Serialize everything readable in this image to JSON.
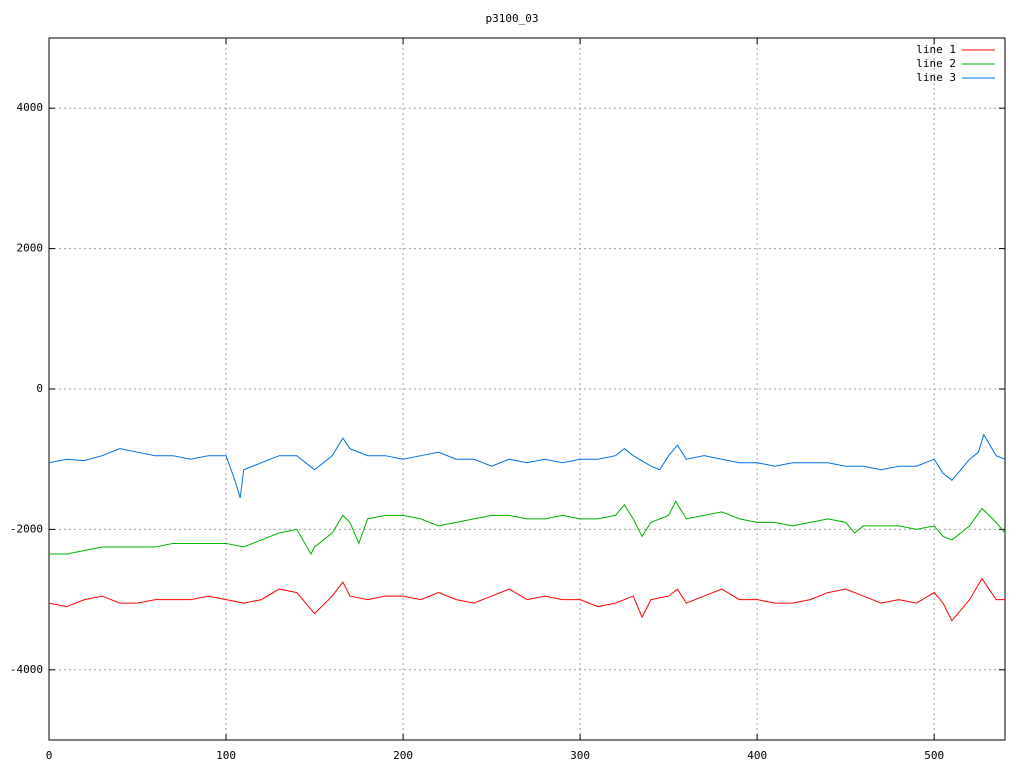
{
  "chart_data": {
    "type": "line",
    "title": "p3100_03",
    "xlim": [
      0,
      540
    ],
    "xticks": [
      0,
      100,
      200,
      300,
      400,
      500
    ],
    "ylim": [
      -5000,
      5000
    ],
    "yticks": [
      -4000,
      -2000,
      0,
      2000,
      4000
    ],
    "grid": true,
    "legend": "top-right",
    "series": [
      {
        "name": "line 1",
        "color": "#ff0000",
        "x": [
          0,
          10,
          20,
          30,
          40,
          50,
          60,
          70,
          80,
          90,
          100,
          110,
          120,
          130,
          140,
          150,
          160,
          166,
          170,
          180,
          190,
          200,
          210,
          220,
          230,
          240,
          250,
          260,
          270,
          280,
          290,
          300,
          310,
          320,
          330,
          335,
          340,
          350,
          355,
          360,
          370,
          380,
          390,
          400,
          410,
          420,
          430,
          440,
          450,
          460,
          470,
          480,
          490,
          500,
          505,
          510,
          520,
          527,
          535,
          540
        ],
        "values": [
          -3050,
          -3100,
          -3000,
          -2950,
          -3050,
          -3050,
          -3000,
          -3000,
          -3000,
          -2950,
          -3000,
          -3050,
          -3000,
          -2850,
          -2900,
          -3200,
          -2950,
          -2750,
          -2950,
          -3000,
          -2950,
          -2950,
          -3000,
          -2900,
          -3000,
          -3050,
          -2950,
          -2850,
          -3000,
          -2950,
          -3000,
          -3000,
          -3100,
          -3050,
          -2950,
          -3250,
          -3000,
          -2950,
          -2850,
          -3050,
          -2950,
          -2850,
          -3000,
          -3000,
          -3050,
          -3050,
          -3000,
          -2900,
          -2850,
          -2950,
          -3050,
          -3000,
          -3050,
          -2900,
          -3050,
          -3300,
          -3000,
          -2700,
          -3000,
          -3000
        ]
      },
      {
        "name": "line 2",
        "color": "#00b000",
        "x": [
          0,
          10,
          20,
          30,
          40,
          50,
          60,
          70,
          80,
          90,
          100,
          110,
          120,
          130,
          140,
          148,
          150,
          160,
          166,
          170,
          175,
          180,
          190,
          200,
          210,
          220,
          230,
          240,
          250,
          260,
          270,
          280,
          290,
          300,
          310,
          320,
          325,
          330,
          335,
          340,
          350,
          354,
          360,
          370,
          380,
          390,
          400,
          410,
          420,
          430,
          440,
          450,
          455,
          460,
          470,
          480,
          490,
          500,
          505,
          510,
          520,
          527,
          535,
          540
        ],
        "values": [
          -2350,
          -2350,
          -2300,
          -2250,
          -2250,
          -2250,
          -2250,
          -2200,
          -2200,
          -2200,
          -2200,
          -2250,
          -2150,
          -2050,
          -2000,
          -2350,
          -2250,
          -2050,
          -1800,
          -1900,
          -2200,
          -1850,
          -1800,
          -1800,
          -1850,
          -1950,
          -1900,
          -1850,
          -1800,
          -1800,
          -1850,
          -1850,
          -1800,
          -1850,
          -1850,
          -1800,
          -1650,
          -1850,
          -2100,
          -1900,
          -1800,
          -1600,
          -1850,
          -1800,
          -1750,
          -1850,
          -1900,
          -1900,
          -1950,
          -1900,
          -1850,
          -1900,
          -2050,
          -1950,
          -1950,
          -1950,
          -2000,
          -1950,
          -2100,
          -2150,
          -1950,
          -1700,
          -1900,
          -2050
        ]
      },
      {
        "name": "line 3",
        "color": "#0070e0",
        "x": [
          0,
          10,
          20,
          30,
          40,
          50,
          60,
          70,
          80,
          90,
          100,
          105,
          108,
          110,
          120,
          130,
          140,
          150,
          160,
          166,
          170,
          180,
          190,
          200,
          210,
          220,
          230,
          240,
          250,
          260,
          270,
          280,
          290,
          300,
          310,
          320,
          325,
          330,
          340,
          345,
          350,
          355,
          360,
          370,
          380,
          390,
          400,
          410,
          420,
          430,
          440,
          450,
          460,
          470,
          480,
          490,
          500,
          505,
          510,
          520,
          525,
          528,
          535,
          540
        ],
        "values": [
          -1050,
          -1000,
          -1020,
          -950,
          -850,
          -900,
          -950,
          -950,
          -1000,
          -950,
          -950,
          -1300,
          -1550,
          -1150,
          -1050,
          -950,
          -950,
          -1150,
          -950,
          -700,
          -850,
          -950,
          -950,
          -1000,
          -950,
          -900,
          -1000,
          -1000,
          -1100,
          -1000,
          -1050,
          -1000,
          -1050,
          -1000,
          -1000,
          -950,
          -850,
          -950,
          -1100,
          -1150,
          -950,
          -800,
          -1000,
          -950,
          -1000,
          -1050,
          -1050,
          -1100,
          -1050,
          -1050,
          -1050,
          -1100,
          -1100,
          -1150,
          -1100,
          -1100,
          -1000,
          -1200,
          -1300,
          -1000,
          -900,
          -650,
          -950,
          -1000
        ]
      }
    ]
  }
}
